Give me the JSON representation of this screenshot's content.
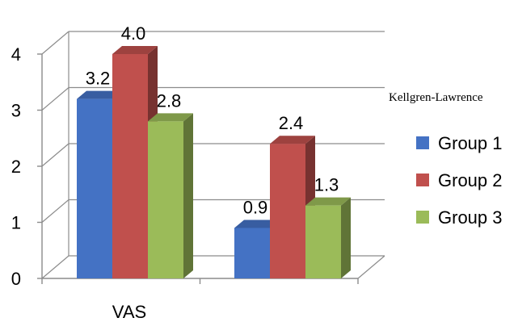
{
  "chart_data": {
    "type": "bar",
    "categories": [
      "VAS",
      "Kellgren-Lawrence"
    ],
    "series": [
      {
        "name": "Group 1",
        "values": [
          3.2,
          0.9
        ],
        "color": "#4472C4"
      },
      {
        "name": "Group 2",
        "values": [
          4.0,
          2.4
        ],
        "color": "#C0504D"
      },
      {
        "name": "Group 3",
        "values": [
          2.8,
          1.3
        ],
        "color": "#9BBB59"
      }
    ],
    "data_labels": [
      [
        "3.2",
        "4.0",
        "2.8"
      ],
      [
        "0.9",
        "2.4",
        "1.3"
      ]
    ],
    "ylim": [
      0,
      4
    ],
    "y_ticks": [
      "0",
      "1",
      "2",
      "3",
      "4"
    ],
    "grid": true,
    "legend": "right",
    "style": "3d-clustered-column"
  }
}
